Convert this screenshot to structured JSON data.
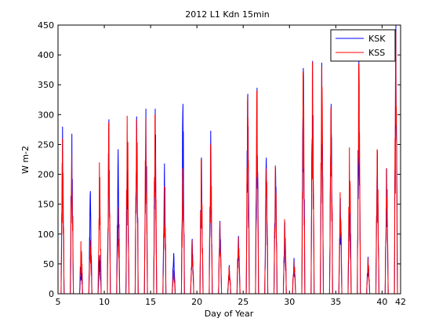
{
  "chart_data": {
    "type": "line",
    "title": "2012 L1 Kdn 15min",
    "xlabel": "Day of Year",
    "ylabel": "W m-2",
    "xlim": [
      5,
      42
    ],
    "ylim": [
      0,
      450
    ],
    "xticks": [
      5,
      10,
      15,
      20,
      25,
      30,
      35,
      40,
      42
    ],
    "yticks": [
      0,
      50,
      100,
      150,
      200,
      250,
      300,
      350,
      400,
      450
    ],
    "grid": false,
    "legend": {
      "position": "top-right",
      "entries": [
        "KSK",
        "KSS"
      ]
    },
    "daily_peaks": [
      {
        "day": 5,
        "KSK": 280,
        "KSS": 260
      },
      {
        "day": 6,
        "KSK": 268,
        "KSS": 235
      },
      {
        "day": 7,
        "KSK": 45,
        "KSS": 88
      },
      {
        "day": 8,
        "KSK": 172,
        "KSS": 90
      },
      {
        "day": 9,
        "KSK": 65,
        "KSS": 220
      },
      {
        "day": 10,
        "KSK": 292,
        "KSS": 287
      },
      {
        "day": 11,
        "KSK": 242,
        "KSS": 145
      },
      {
        "day": 12,
        "KSK": 208,
        "KSS": 298
      },
      {
        "day": 13,
        "KSK": 297,
        "KSS": 292
      },
      {
        "day": 14,
        "KSK": 310,
        "KSS": 295
      },
      {
        "day": 15,
        "KSK": 310,
        "KSS": 300
      },
      {
        "day": 16,
        "KSK": 218,
        "KSS": 180
      },
      {
        "day": 17,
        "KSK": 68,
        "KSS": 40
      },
      {
        "day": 18,
        "KSK": 318,
        "KSS": 210
      },
      {
        "day": 19,
        "KSK": 92,
        "KSS": 90
      },
      {
        "day": 20,
        "KSK": 228,
        "KSS": 225
      },
      {
        "day": 21,
        "KSK": 273,
        "KSS": 250
      },
      {
        "day": 22,
        "KSK": 122,
        "KSS": 120
      },
      {
        "day": 23,
        "KSK": 48,
        "KSS": 45
      },
      {
        "day": 24,
        "KSK": 97,
        "KSS": 95
      },
      {
        "day": 25,
        "KSK": 335,
        "KSS": 330
      },
      {
        "day": 26,
        "KSK": 345,
        "KSS": 340
      },
      {
        "day": 27,
        "KSK": 228,
        "KSS": 210
      },
      {
        "day": 28,
        "KSK": 212,
        "KSS": 215
      },
      {
        "day": 29,
        "KSK": 120,
        "KSS": 125
      },
      {
        "day": 30,
        "KSK": 60,
        "KSS": 55
      },
      {
        "day": 31,
        "KSK": 378,
        "KSS": 372
      },
      {
        "day": 32,
        "KSK": 390,
        "KSS": 388
      },
      {
        "day": 33,
        "KSK": 387,
        "KSS": 380
      },
      {
        "day": 34,
        "KSK": 318,
        "KSS": 312
      },
      {
        "day": 35,
        "KSK": 160,
        "KSS": 170
      },
      {
        "day": 36,
        "KSK": 175,
        "KSS": 245
      },
      {
        "day": 37,
        "KSK": 390,
        "KSS": 385
      },
      {
        "day": 38,
        "KSK": 62,
        "KSS": 60
      },
      {
        "day": 39,
        "KSK": 240,
        "KSS": 242
      },
      {
        "day": 40,
        "KSK": 210,
        "KSS": 210
      },
      {
        "day": 41,
        "KSK": 450,
        "KSS": 440
      }
    ]
  }
}
